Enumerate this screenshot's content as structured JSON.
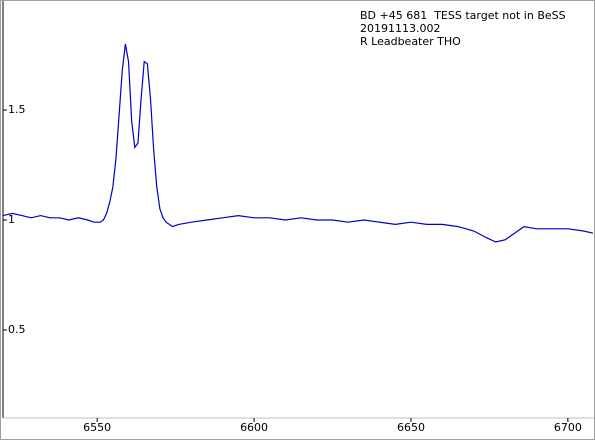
{
  "chart_data": {
    "type": "line",
    "annotations": [
      "BD +45 681  TESS target not in BeSS",
      "20191113.002",
      "R Leadbeater THO"
    ],
    "x": [
      6520,
      6523,
      6526,
      6529,
      6532,
      6535,
      6538,
      6541,
      6544,
      6547,
      6549,
      6551,
      6552,
      6553,
      6554,
      6555,
      6556,
      6557,
      6558,
      6559,
      6560,
      6561,
      6562,
      6563,
      6564,
      6565,
      6566,
      6567,
      6568,
      6569,
      6570,
      6571,
      6572,
      6574,
      6576,
      6580,
      6585,
      6590,
      6595,
      6600,
      6605,
      6610,
      6615,
      6620,
      6625,
      6630,
      6635,
      6640,
      6645,
      6650,
      6655,
      6660,
      6665,
      6670,
      6674,
      6677,
      6680,
      6683,
      6686,
      6690,
      6695,
      6700,
      6705,
      6708
    ],
    "series": [
      {
        "color": "#0000c8",
        "values": [
          1.02,
          1.03,
          1.02,
          1.01,
          1.02,
          1.01,
          1.01,
          1.0,
          1.01,
          1.0,
          0.99,
          0.99,
          1.0,
          1.03,
          1.08,
          1.15,
          1.28,
          1.48,
          1.68,
          1.8,
          1.72,
          1.45,
          1.33,
          1.35,
          1.55,
          1.72,
          1.71,
          1.55,
          1.32,
          1.15,
          1.05,
          1.01,
          0.99,
          0.97,
          0.98,
          0.99,
          1.0,
          1.01,
          1.02,
          1.01,
          1.01,
          1.0,
          1.01,
          1.0,
          1.0,
          0.99,
          1.0,
          0.99,
          0.98,
          0.99,
          0.98,
          0.98,
          0.97,
          0.95,
          0.92,
          0.9,
          0.91,
          0.94,
          0.97,
          0.96,
          0.96,
          0.96,
          0.95,
          0.94
        ]
      }
    ],
    "xlim": [
      6520,
      6708
    ],
    "xticks": [
      6550,
      6600,
      6650,
      6700
    ],
    "ylim": [
      0.1,
      2.0
    ],
    "yticks": [
      0.5,
      1,
      1.5
    ],
    "grid": false
  }
}
